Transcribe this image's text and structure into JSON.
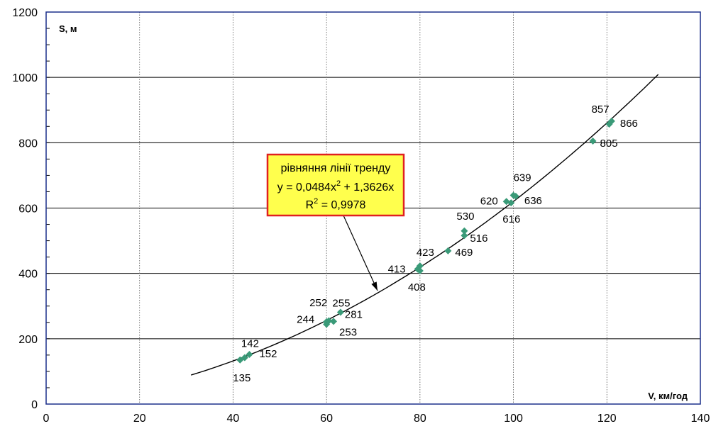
{
  "chart_data": {
    "type": "scatter",
    "x_axis": {
      "min": 0,
      "max": 140,
      "ticks": [
        0,
        20,
        40,
        60,
        80,
        100,
        120,
        140
      ],
      "label": "V, км/год"
    },
    "y_axis": {
      "min": 0,
      "max": 1200,
      "ticks": [
        0,
        200,
        400,
        600,
        800,
        1000,
        1200
      ],
      "label": "S, м"
    },
    "grid": true,
    "colors": {
      "marker": "#3a9a78",
      "trendline": "#000000",
      "box_fill": "#ffff4d",
      "box_border": "#e02020",
      "grid": "#000000",
      "frame": "#1a2f8a"
    },
    "points": [
      {
        "x": 41.5,
        "y": 135,
        "label": "135"
      },
      {
        "x": 42.5,
        "y": 142,
        "label": "142"
      },
      {
        "x": 43.5,
        "y": 152,
        "label": "152"
      },
      {
        "x": 60,
        "y": 244,
        "label": "244"
      },
      {
        "x": 60,
        "y": 252,
        "label": "252"
      },
      {
        "x": 61.5,
        "y": 253,
        "label": "253"
      },
      {
        "x": 63,
        "y": 281,
        "label": "281"
      },
      {
        "x": 60.5,
        "y": 255,
        "label": "255"
      },
      {
        "x": 79.5,
        "y": 413,
        "label": "413"
      },
      {
        "x": 80,
        "y": 408,
        "label": "408"
      },
      {
        "x": 80,
        "y": 423,
        "label": "423"
      },
      {
        "x": 86,
        "y": 469,
        "label": "469"
      },
      {
        "x": 89.5,
        "y": 516,
        "label": "516"
      },
      {
        "x": 89.5,
        "y": 530,
        "label": "530"
      },
      {
        "x": 98.5,
        "y": 620,
        "label": "620"
      },
      {
        "x": 99.5,
        "y": 616,
        "label": "616"
      },
      {
        "x": 100,
        "y": 639,
        "label": "639"
      },
      {
        "x": 100.5,
        "y": 636,
        "label": "636"
      },
      {
        "x": 117,
        "y": 805,
        "label": "805"
      },
      {
        "x": 120.5,
        "y": 857,
        "label": "857"
      },
      {
        "x": 121,
        "y": 866,
        "label": "866"
      }
    ],
    "trendline": {
      "a": 0.0484,
      "b": 1.3626,
      "x_start": 31,
      "x_end": 131
    },
    "trend_box": {
      "line1": "рівняння лінії тренду",
      "line2_prefix": "y = 0,0484x",
      "line2_sup": "2",
      "line2_suffix": " + 1,3626x",
      "line3_prefix": "R",
      "line3_sup": "2",
      "line3_suffix": " = 0,9978"
    }
  }
}
